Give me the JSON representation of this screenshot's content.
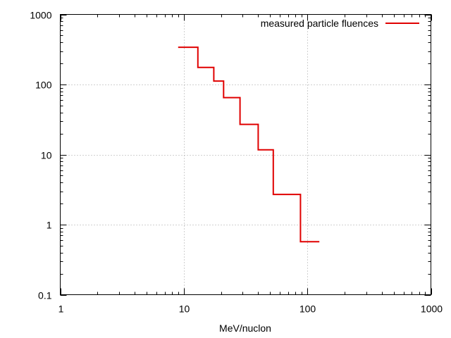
{
  "chart_data": {
    "type": "line",
    "step": true,
    "xlabel": "MeV/nuclon",
    "ylabel": "",
    "xscale": "log",
    "yscale": "log",
    "xlim": [
      1,
      1000
    ],
    "ylim": [
      0.1,
      1000
    ],
    "grid": true,
    "legend_position": "top-right",
    "x_ticks": [
      {
        "value": 1,
        "label": "1"
      },
      {
        "value": 10,
        "label": "10"
      },
      {
        "value": 100,
        "label": "100"
      },
      {
        "value": 1000,
        "label": "1000"
      }
    ],
    "y_ticks": [
      {
        "value": 0.1,
        "label": "0.1"
      },
      {
        "value": 1,
        "label": "1"
      },
      {
        "value": 10,
        "label": "10"
      },
      {
        "value": 100,
        "label": "100"
      },
      {
        "value": 1000,
        "label": "1000"
      }
    ],
    "series": [
      {
        "name": "measured particle fluences",
        "color": "#e00000",
        "bins": [
          {
            "x_start": 9,
            "x_end": 13,
            "y": 340
          },
          {
            "x_start": 13,
            "x_end": 17.5,
            "y": 175
          },
          {
            "x_start": 17.5,
            "x_end": 21,
            "y": 112
          },
          {
            "x_start": 21,
            "x_end": 28.5,
            "y": 65
          },
          {
            "x_start": 28.5,
            "x_end": 40,
            "y": 27
          },
          {
            "x_start": 40,
            "x_end": 53,
            "y": 11.7
          },
          {
            "x_start": 53,
            "x_end": 88,
            "y": 2.7
          },
          {
            "x_start": 88,
            "x_end": 125,
            "y": 0.57
          }
        ]
      }
    ]
  }
}
